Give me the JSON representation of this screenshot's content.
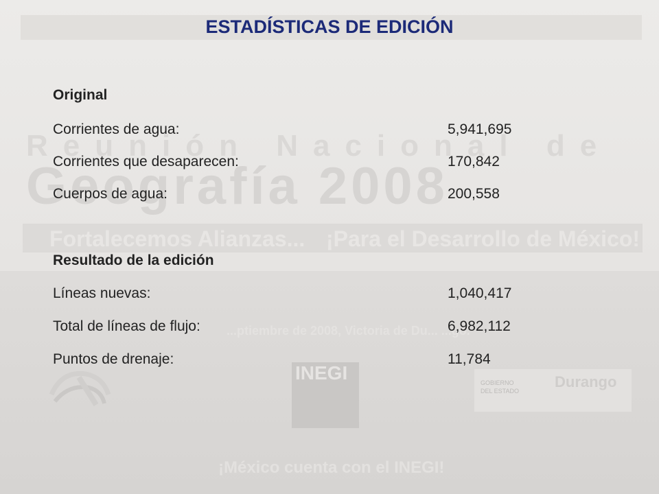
{
  "title": "ESTADÍSTICAS DE EDICIÓN",
  "watermark": {
    "line1": "Reunión Nacional de",
    "line2": "Geografía 2008",
    "slogan_left": "Fortalecemos Alianzas...",
    "slogan_right": "¡Para el Desarrollo de México!",
    "dates": "...ptiembre de 2008, Victoria de Du... ...go.",
    "footer": "¡México cuenta con el INEGI!",
    "logo_inegi": "INEGI",
    "logo_gobierno": [
      "GOBIERNO",
      "DEL ESTADO"
    ],
    "logo_durango": "Durango"
  },
  "original": {
    "heading": "Original",
    "rows": [
      {
        "label": "Corrientes de agua:",
        "value": "5,941,695"
      },
      {
        "label": "Corrientes que desaparecen:",
        "value": "170,842"
      },
      {
        "label": "Cuerpos de agua:",
        "value": "200,558"
      }
    ]
  },
  "resultado": {
    "heading": "Resultado de la edición",
    "rows": [
      {
        "label": "Líneas nuevas:",
        "value": "1,040,417"
      },
      {
        "label": "Total de líneas de flujo:",
        "value": "6,982,112"
      },
      {
        "label": "Puntos de drenaje:",
        "value": "11,784"
      }
    ]
  },
  "colors": {
    "title": "#1c2a78",
    "text": "#222222"
  }
}
